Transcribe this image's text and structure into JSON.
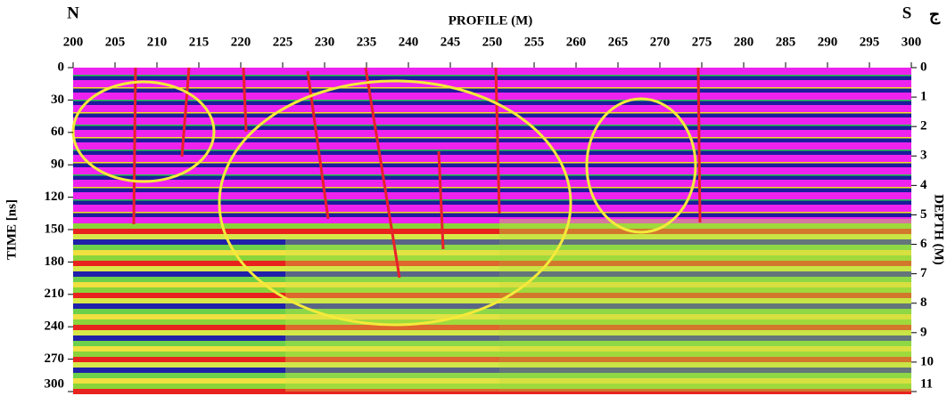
{
  "chart_data": {
    "type": "radargram",
    "xlabel": "PROFILE (M)",
    "ylabel": "TIME [ns]",
    "y2label": "DEPTH (M)",
    "annotations": [
      "N",
      "S",
      "ج"
    ],
    "xlim": [
      200,
      300
    ],
    "xticks": [
      200,
      205,
      210,
      215,
      220,
      225,
      230,
      235,
      240,
      245,
      250,
      255,
      260,
      265,
      270,
      275,
      280,
      285,
      290,
      295,
      300
    ],
    "ylim": [
      0,
      300
    ],
    "y_inverted": true,
    "yticks": [
      0,
      30,
      60,
      90,
      120,
      150,
      180,
      210,
      240,
      270,
      300
    ],
    "y2lim": [
      0,
      11
    ],
    "y2ticks": [
      0,
      1,
      2,
      3,
      4,
      5,
      6,
      7,
      8,
      9,
      10,
      11
    ]
  }
}
